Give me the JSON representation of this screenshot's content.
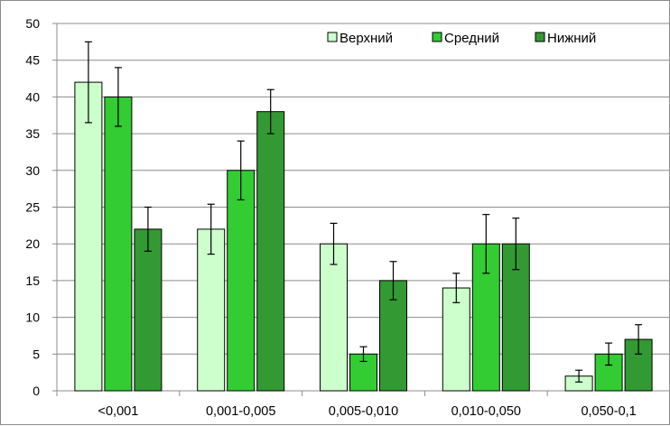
{
  "chart_data": {
    "type": "bar",
    "title": "",
    "xlabel": "",
    "ylabel": "",
    "ylim": [
      0,
      50
    ],
    "yticks": [
      0,
      5,
      10,
      15,
      20,
      25,
      30,
      35,
      40,
      45,
      50
    ],
    "grid": "horizontal",
    "legend_position": "top-right",
    "categories": [
      "<0,001",
      "0,001-0,005",
      "0,005-0,010",
      "0,010-0,050",
      "0,050-0,1"
    ],
    "series": [
      {
        "name": "Верхний",
        "color": "#ccffcc",
        "values": [
          42,
          22,
          20,
          14,
          2
        ],
        "error": [
          5.5,
          3.4,
          2.8,
          2.0,
          0.8
        ]
      },
      {
        "name": "Средний",
        "color": "#33cc33",
        "values": [
          40,
          30,
          5,
          20,
          5
        ],
        "error": [
          4.0,
          4.0,
          1.0,
          4.0,
          1.5
        ]
      },
      {
        "name": "Нижний",
        "color": "#339933",
        "values": [
          22,
          38,
          15,
          20,
          7
        ],
        "error": [
          3.0,
          3.0,
          2.6,
          3.5,
          2.0
        ]
      }
    ]
  }
}
